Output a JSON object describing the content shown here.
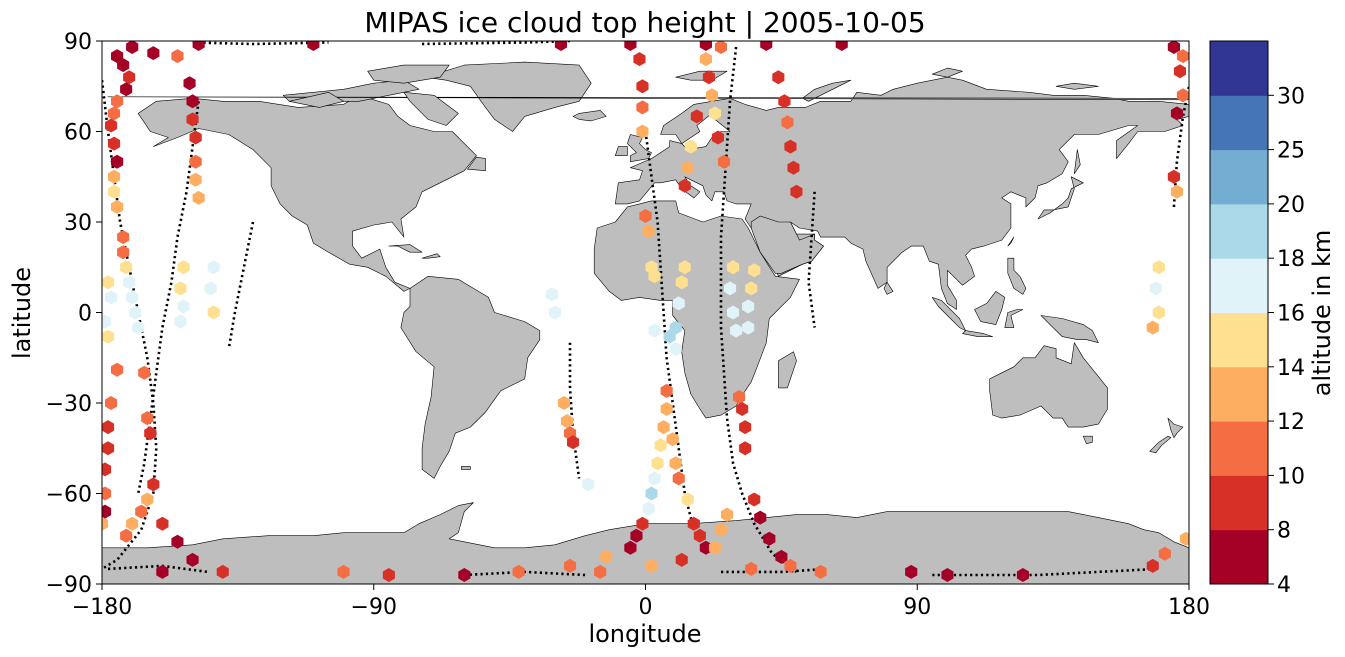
{
  "chart_data": {
    "type": "scatter",
    "title": "MIPAS ice cloud top height | 2005-10-05",
    "xlabel": "longitude",
    "ylabel": "latitude",
    "xlim": [
      -180,
      180
    ],
    "ylim": [
      -90,
      90
    ],
    "xticks": [
      -180,
      -90,
      0,
      90,
      180
    ],
    "yticks": [
      -90,
      -60,
      -30,
      0,
      30,
      60,
      90
    ],
    "xtick_labels": [
      "−180",
      "−90",
      "0",
      "90",
      "180"
    ],
    "ytick_labels": [
      "−90",
      "−60",
      "−30",
      "0",
      "30",
      "60",
      "90"
    ],
    "grid": false,
    "colorbar": {
      "label": "altitude in km",
      "boundaries": [
        4,
        8,
        10,
        12,
        14,
        16,
        18,
        20,
        25,
        30
      ],
      "tick_labels": [
        "4",
        "8",
        "10",
        "12",
        "14",
        "16",
        "18",
        "20",
        "25",
        "30"
      ],
      "colors": [
        "#a50026",
        "#d73027",
        "#f46d43",
        "#fdae61",
        "#fee090",
        "#e0f3f8",
        "#abd9e9",
        "#74add1",
        "#4575b4",
        "#313695"
      ]
    },
    "land_color": "#bebebe",
    "orbit_segments": [
      [
        [
          -180,
          77
        ],
        [
          -178,
          60
        ],
        [
          -176,
          45
        ],
        [
          -174,
          30
        ],
        [
          -171,
          15
        ],
        [
          -168,
          0
        ],
        [
          -165,
          -15
        ],
        [
          -163,
          -30
        ],
        [
          -162,
          -45
        ],
        [
          -163,
          -60
        ],
        [
          -167,
          -72
        ],
        [
          -175,
          -82
        ],
        [
          -180,
          -85
        ]
      ],
      [
        [
          -148,
          70
        ],
        [
          -150,
          55
        ],
        [
          -152,
          40
        ],
        [
          -155,
          25
        ],
        [
          -157,
          10
        ],
        [
          -160,
          -5
        ],
        [
          -162,
          -20
        ],
        [
          -164,
          -35
        ],
        [
          -166,
          -50
        ],
        [
          -168,
          -60
        ]
      ],
      [
        [
          -130,
          30
        ],
        [
          -133,
          15
        ],
        [
          -136,
          0
        ],
        [
          -138,
          -12
        ]
      ],
      [
        [
          -25,
          -10
        ],
        [
          -25,
          -25
        ],
        [
          -24,
          -40
        ],
        [
          -22,
          -55
        ]
      ],
      [
        [
          0,
          60
        ],
        [
          2,
          45
        ],
        [
          4,
          30
        ],
        [
          5,
          15
        ],
        [
          6,
          0
        ],
        [
          7,
          -15
        ],
        [
          9,
          -30
        ],
        [
          11,
          -45
        ],
        [
          13,
          -60
        ],
        [
          16,
          -72
        ]
      ],
      [
        [
          30,
          88
        ],
        [
          28,
          70
        ],
        [
          27,
          55
        ],
        [
          26,
          40
        ],
        [
          25,
          25
        ],
        [
          25,
          10
        ],
        [
          25,
          -5
        ],
        [
          26,
          -20
        ],
        [
          27,
          -35
        ],
        [
          29,
          -50
        ],
        [
          32,
          -60
        ],
        [
          36,
          -70
        ],
        [
          42,
          -80
        ],
        [
          50,
          -86
        ]
      ],
      [
        [
          56,
          40
        ],
        [
          55,
          25
        ],
        [
          54,
          10
        ],
        [
          56,
          -5
        ]
      ],
      [
        [
          175,
          35
        ],
        [
          176,
          50
        ],
        [
          178,
          65
        ],
        [
          180,
          75
        ]
      ],
      [
        [
          -25,
          90
        ],
        [
          -40,
          89.5
        ],
        [
          -75,
          89
        ]
      ],
      [
        [
          -178,
          -85
        ],
        [
          -160,
          -84
        ],
        [
          -145,
          -86
        ]
      ],
      [
        [
          -60,
          -87
        ],
        [
          -40,
          -86
        ],
        [
          -20,
          -87
        ]
      ],
      [
        [
          25,
          -86
        ],
        [
          45,
          -86
        ],
        [
          60,
          -85
        ]
      ],
      [
        [
          95,
          -87
        ],
        [
          115,
          -87
        ],
        [
          130,
          -87
        ],
        [
          150,
          -86
        ],
        [
          170,
          -85
        ]
      ],
      [
        [
          -150,
          89.5
        ],
        [
          -130,
          89
        ],
        [
          -105,
          89.5
        ]
      ]
    ],
    "points": [
      {
        "lon": -175,
        "lat": 85,
        "alt": 6
      },
      {
        "lon": -170,
        "lat": 88,
        "alt": 6
      },
      {
        "lon": -163,
        "lat": 86,
        "alt": 6
      },
      {
        "lon": -148,
        "lat": 89,
        "alt": 6
      },
      {
        "lon": -110,
        "lat": 89,
        "alt": 6
      },
      {
        "lon": -28,
        "lat": 89,
        "alt": 6
      },
      {
        "lon": -5,
        "lat": 89,
        "alt": 6
      },
      {
        "lon": 20,
        "lat": 89,
        "alt": 6
      },
      {
        "lon": 40,
        "lat": 89,
        "alt": 6
      },
      {
        "lon": 65,
        "lat": 89,
        "alt": 6
      },
      {
        "lon": 175,
        "lat": 88,
        "alt": 6
      },
      {
        "lon": 178,
        "lat": 85,
        "alt": 11
      },
      {
        "lon": -173,
        "lat": 82,
        "alt": 6
      },
      {
        "lon": -171,
        "lat": 78,
        "alt": 9
      },
      {
        "lon": -172,
        "lat": 74,
        "alt": 6
      },
      {
        "lon": -175,
        "lat": 70,
        "alt": 11
      },
      {
        "lon": -176,
        "lat": 66,
        "alt": 11
      },
      {
        "lon": -177,
        "lat": 62,
        "alt": 9
      },
      {
        "lon": -176,
        "lat": 56,
        "alt": 9
      },
      {
        "lon": -175,
        "lat": 50,
        "alt": 6
      },
      {
        "lon": -176,
        "lat": 45,
        "alt": 13
      },
      {
        "lon": -176,
        "lat": 40,
        "alt": 15
      },
      {
        "lon": -175,
        "lat": 35,
        "alt": 13
      },
      {
        "lon": -173,
        "lat": 25,
        "alt": 11
      },
      {
        "lon": -173,
        "lat": 20,
        "alt": 11
      },
      {
        "lon": -172,
        "lat": 15,
        "alt": 15
      },
      {
        "lon": -171,
        "lat": 10,
        "alt": 17
      },
      {
        "lon": -170,
        "lat": 5,
        "alt": 17
      },
      {
        "lon": -169,
        "lat": 0,
        "alt": 17
      },
      {
        "lon": -168,
        "lat": -5,
        "alt": 17
      },
      {
        "lon": -166,
        "lat": -20,
        "alt": 11
      },
      {
        "lon": -165,
        "lat": -35,
        "alt": 11
      },
      {
        "lon": -164,
        "lat": -40,
        "alt": 9
      },
      {
        "lon": -163,
        "lat": -57,
        "alt": 9
      },
      {
        "lon": -165,
        "lat": -62,
        "alt": 13
      },
      {
        "lon": -167,
        "lat": -66,
        "alt": 11
      },
      {
        "lon": -170,
        "lat": -70,
        "alt": 13
      },
      {
        "lon": -172,
        "lat": -74,
        "alt": 11
      },
      {
        "lon": -160,
        "lat": -70,
        "alt": 9
      },
      {
        "lon": -155,
        "lat": -76,
        "alt": 6
      },
      {
        "lon": -150,
        "lat": -82,
        "alt": 6
      },
      {
        "lon": -140,
        "lat": -86,
        "alt": 9
      },
      {
        "lon": -160,
        "lat": -86,
        "alt": 6
      },
      {
        "lon": -155,
        "lat": 85,
        "alt": 11
      },
      {
        "lon": -151,
        "lat": 76,
        "alt": 6
      },
      {
        "lon": -150,
        "lat": 70,
        "alt": 6
      },
      {
        "lon": -150,
        "lat": 64,
        "alt": 9
      },
      {
        "lon": -149,
        "lat": 58,
        "alt": 9
      },
      {
        "lon": -149,
        "lat": 50,
        "alt": 11
      },
      {
        "lon": -149,
        "lat": 44,
        "alt": 13
      },
      {
        "lon": -148,
        "lat": 38,
        "alt": 13
      },
      {
        "lon": -153,
        "lat": 15,
        "alt": 15
      },
      {
        "lon": -154,
        "lat": 8,
        "alt": 15
      },
      {
        "lon": -153,
        "lat": 2,
        "alt": 17
      },
      {
        "lon": -154,
        "lat": -3,
        "alt": 17
      },
      {
        "lon": -143,
        "lat": 15,
        "alt": 17
      },
      {
        "lon": -144,
        "lat": 8,
        "alt": 17
      },
      {
        "lon": -143,
        "lat": 0,
        "alt": 15
      },
      {
        "lon": -178,
        "lat": 10,
        "alt": 15
      },
      {
        "lon": -177,
        "lat": 5,
        "alt": 17
      },
      {
        "lon": -179,
        "lat": -3,
        "alt": 17
      },
      {
        "lon": -178,
        "lat": -8,
        "alt": 15
      },
      {
        "lon": -175,
        "lat": -19,
        "alt": 11
      },
      {
        "lon": -177,
        "lat": -30,
        "alt": 11
      },
      {
        "lon": -178,
        "lat": -38,
        "alt": 9
      },
      {
        "lon": -178,
        "lat": -45,
        "alt": 9
      },
      {
        "lon": -179,
        "lat": -52,
        "alt": 9
      },
      {
        "lon": -179,
        "lat": -60,
        "alt": 11
      },
      {
        "lon": -179,
        "lat": -66,
        "alt": 6
      },
      {
        "lon": -180,
        "lat": -70,
        "alt": 13
      },
      {
        "lon": -31,
        "lat": 6,
        "alt": 17
      },
      {
        "lon": -30,
        "lat": 0,
        "alt": 17
      },
      {
        "lon": -27,
        "lat": -30,
        "alt": 13
      },
      {
        "lon": -26,
        "lat": -36,
        "alt": 13
      },
      {
        "lon": -25,
        "lat": -40,
        "alt": 11
      },
      {
        "lon": -24,
        "lat": -43,
        "alt": 9
      },
      {
        "lon": -19,
        "lat": -57,
        "alt": 17
      },
      {
        "lon": -2,
        "lat": 84,
        "alt": 9
      },
      {
        "lon": -1,
        "lat": 75,
        "alt": 9
      },
      {
        "lon": -1,
        "lat": 68,
        "alt": 11
      },
      {
        "lon": -1,
        "lat": 60,
        "alt": 13
      },
      {
        "lon": 0,
        "lat": 32,
        "alt": 11
      },
      {
        "lon": 1,
        "lat": 27,
        "alt": 13
      },
      {
        "lon": 2,
        "lat": 15,
        "alt": 15
      },
      {
        "lon": 3,
        "lat": 12,
        "alt": 15
      },
      {
        "lon": 3,
        "lat": -6,
        "alt": 17
      },
      {
        "lon": 8,
        "lat": -8,
        "alt": 19
      },
      {
        "lon": 10,
        "lat": -12,
        "alt": 17
      },
      {
        "lon": 7,
        "lat": -26,
        "alt": 11
      },
      {
        "lon": 7,
        "lat": -32,
        "alt": 13
      },
      {
        "lon": 6,
        "lat": -38,
        "alt": 13
      },
      {
        "lon": 5,
        "lat": -44,
        "alt": 15
      },
      {
        "lon": 4,
        "lat": -50,
        "alt": 15
      },
      {
        "lon": 3,
        "lat": -55,
        "alt": 17
      },
      {
        "lon": 2,
        "lat": -60,
        "alt": 19
      },
      {
        "lon": 1,
        "lat": -65,
        "alt": 17
      },
      {
        "lon": -1,
        "lat": -70,
        "alt": 9
      },
      {
        "lon": -3,
        "lat": -74,
        "alt": 6
      },
      {
        "lon": -5,
        "lat": -78,
        "alt": 6
      },
      {
        "lon": 13,
        "lat": 15,
        "alt": 15
      },
      {
        "lon": 12,
        "lat": 10,
        "alt": 15
      },
      {
        "lon": 11,
        "lat": 3,
        "alt": 17
      },
      {
        "lon": 10,
        "lat": -5,
        "alt": 19
      },
      {
        "lon": 9,
        "lat": -42,
        "alt": 13
      },
      {
        "lon": 10,
        "lat": -50,
        "alt": 13
      },
      {
        "lon": 11,
        "lat": -55,
        "alt": 11
      },
      {
        "lon": 14,
        "lat": -62,
        "alt": 15
      },
      {
        "lon": 16,
        "lat": -70,
        "alt": 9
      },
      {
        "lon": 18,
        "lat": -74,
        "alt": 9
      },
      {
        "lon": 20,
        "lat": -78,
        "alt": 6
      },
      {
        "lon": 23,
        "lat": -78,
        "alt": 13
      },
      {
        "lon": 25,
        "lat": -72,
        "alt": 13
      },
      {
        "lon": 27,
        "lat": -67,
        "alt": 13
      },
      {
        "lon": 29,
        "lat": 15,
        "alt": 15
      },
      {
        "lon": 28,
        "lat": 8,
        "alt": 17
      },
      {
        "lon": 29,
        "lat": 0,
        "alt": 17
      },
      {
        "lon": 30,
        "lat": -6,
        "alt": 17
      },
      {
        "lon": 31,
        "lat": -28,
        "alt": 11
      },
      {
        "lon": 32,
        "lat": -32,
        "alt": 9
      },
      {
        "lon": 33,
        "lat": -38,
        "alt": 9
      },
      {
        "lon": 33,
        "lat": -45,
        "alt": 9
      },
      {
        "lon": 36,
        "lat": -62,
        "alt": 9
      },
      {
        "lon": 38,
        "lat": -68,
        "alt": 6
      },
      {
        "lon": 41,
        "lat": -75,
        "alt": 6
      },
      {
        "lon": 45,
        "lat": -81,
        "alt": 6
      },
      {
        "lon": 48,
        "lat": -84,
        "alt": 11
      },
      {
        "lon": 36,
        "lat": 14,
        "alt": 15
      },
      {
        "lon": 35,
        "lat": 8,
        "alt": 15
      },
      {
        "lon": 34,
        "lat": 2,
        "alt": 17
      },
      {
        "lon": 34,
        "lat": -5,
        "alt": 17
      },
      {
        "lon": 25,
        "lat": 88,
        "alt": 11
      },
      {
        "lon": 20,
        "lat": 84,
        "alt": 13
      },
      {
        "lon": 21,
        "lat": 78,
        "alt": 9
      },
      {
        "lon": 22,
        "lat": 72,
        "alt": 13
      },
      {
        "lon": 23,
        "lat": 66,
        "alt": 15
      },
      {
        "lon": 24,
        "lat": 58,
        "alt": 9
      },
      {
        "lon": 26,
        "lat": 50,
        "alt": 11
      },
      {
        "lon": 17,
        "lat": 65,
        "alt": 9
      },
      {
        "lon": 15,
        "lat": 55,
        "alt": 15
      },
      {
        "lon": 14,
        "lat": 48,
        "alt": 13
      },
      {
        "lon": 13,
        "lat": 42,
        "alt": 9
      },
      {
        "lon": 44,
        "lat": 78,
        "alt": 9
      },
      {
        "lon": 46,
        "lat": 70,
        "alt": 9
      },
      {
        "lon": 47,
        "lat": 63,
        "alt": 11
      },
      {
        "lon": 48,
        "lat": 55,
        "alt": 9
      },
      {
        "lon": 49,
        "lat": 48,
        "alt": 9
      },
      {
        "lon": 50,
        "lat": 40,
        "alt": 9
      },
      {
        "lon": 177,
        "lat": 80,
        "alt": 9
      },
      {
        "lon": 178,
        "lat": 72,
        "alt": 11
      },
      {
        "lon": 176,
        "lat": 66,
        "alt": 6
      },
      {
        "lon": 175,
        "lat": 45,
        "alt": 9
      },
      {
        "lon": 176,
        "lat": 40,
        "alt": 13
      },
      {
        "lon": 170,
        "lat": 15,
        "alt": 15
      },
      {
        "lon": 169,
        "lat": 8,
        "alt": 17
      },
      {
        "lon": 170,
        "lat": 0,
        "alt": 15
      },
      {
        "lon": 168,
        "lat": -5,
        "alt": 13
      },
      {
        "lon": 179,
        "lat": -75,
        "alt": 13
      },
      {
        "lon": 172,
        "lat": -80,
        "alt": 11
      },
      {
        "lon": 168,
        "lat": -84,
        "alt": 9
      },
      {
        "lon": -100,
        "lat": -86,
        "alt": 11
      },
      {
        "lon": -85,
        "lat": -87,
        "alt": 9
      },
      {
        "lon": -60,
        "lat": -87,
        "alt": 6
      },
      {
        "lon": -42,
        "lat": -86,
        "alt": 11
      },
      {
        "lon": -25,
        "lat": -84,
        "alt": 11
      },
      {
        "lon": -15,
        "lat": -86,
        "alt": 11
      },
      {
        "lon": 2,
        "lat": -84,
        "alt": 13
      },
      {
        "lon": 12,
        "lat": -82,
        "alt": 9
      },
      {
        "lon": 35,
        "lat": -85,
        "alt": 11
      },
      {
        "lon": 58,
        "lat": -86,
        "alt": 11
      },
      {
        "lon": 88,
        "lat": -86,
        "alt": 6
      },
      {
        "lon": 100,
        "lat": -87,
        "alt": 6
      },
      {
        "lon": 125,
        "lat": -87,
        "alt": 6
      },
      {
        "lon": -13,
        "lat": -81,
        "alt": 13
      }
    ]
  }
}
